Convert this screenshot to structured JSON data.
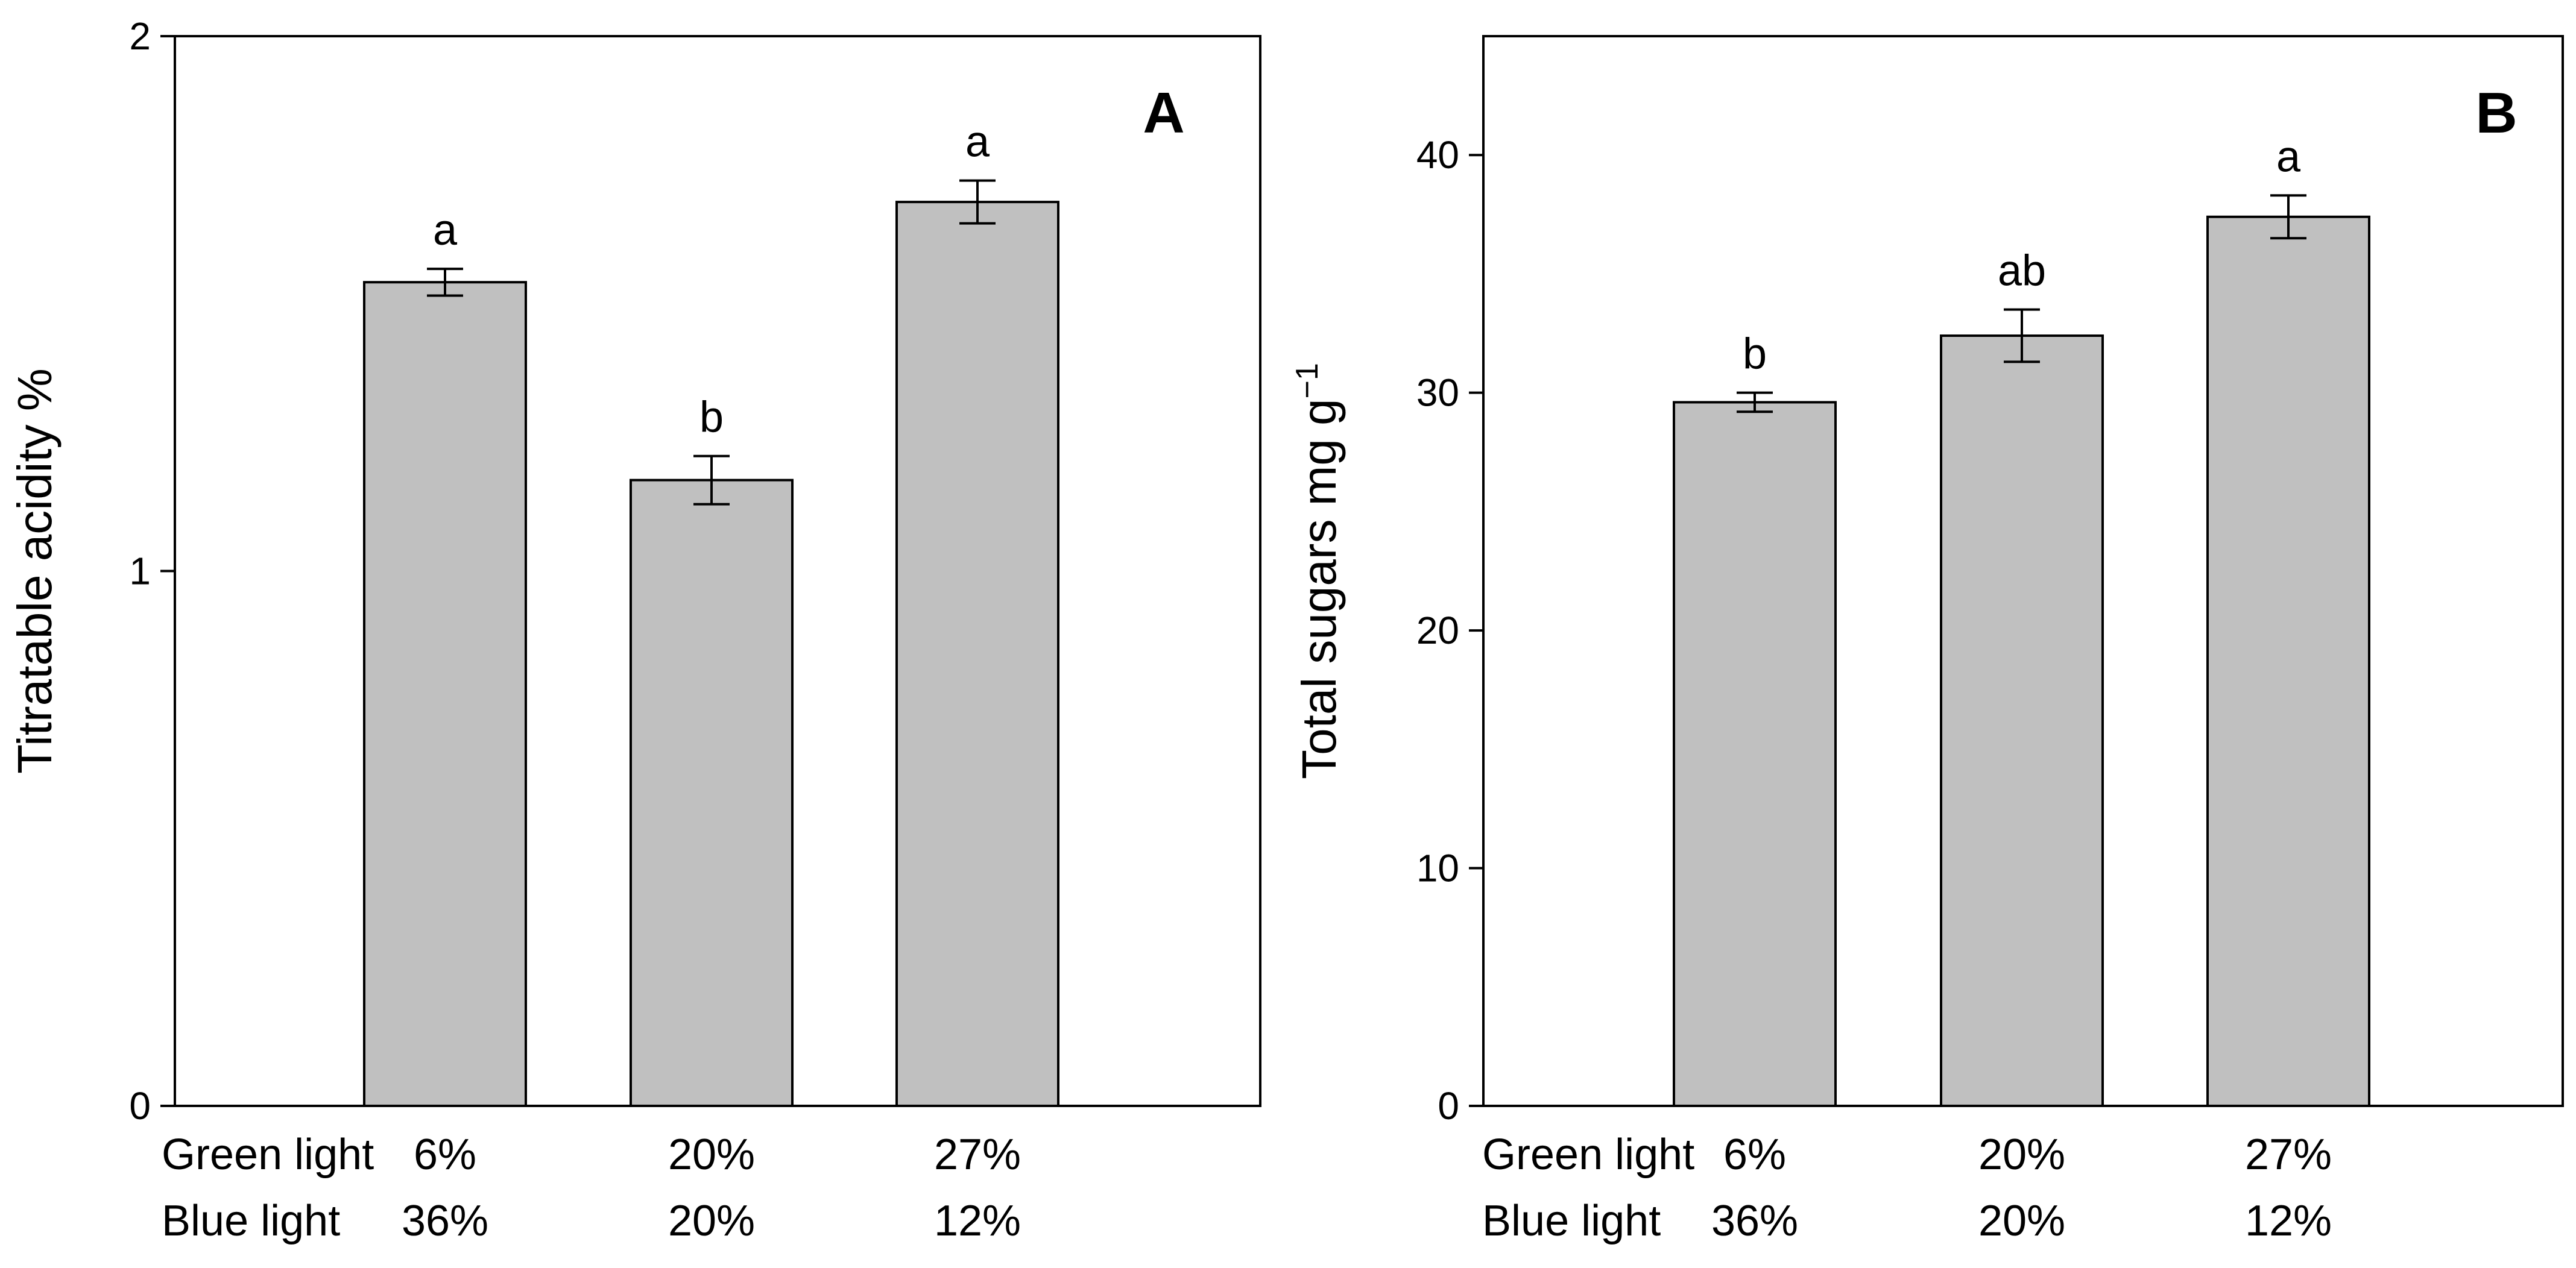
{
  "chart_data": [
    {
      "type": "bar",
      "panel_label": "A",
      "ylabel": "Titratable acidity %",
      "ylim": [
        0,
        2
      ],
      "yticks": [
        0,
        1,
        2
      ],
      "grid": false,
      "row_labels": [
        "Green light",
        "Blue light"
      ],
      "categories": [
        {
          "green": "6%",
          "blue": "36%"
        },
        {
          "green": "20%",
          "blue": "20%"
        },
        {
          "green": "27%",
          "blue": "12%"
        }
      ],
      "values": [
        1.54,
        1.17,
        1.69
      ],
      "errors": [
        0.025,
        0.045,
        0.04
      ],
      "significance": [
        "a",
        "b",
        "a"
      ],
      "bar_color": "#c0c0c0"
    },
    {
      "type": "bar",
      "panel_label": "B",
      "ylabel": "Total sugars mg g",
      "ylabel_superscript": "−1",
      "ylim": [
        0,
        45
      ],
      "yticks": [
        0,
        10,
        20,
        30,
        40
      ],
      "grid": false,
      "row_labels": [
        "Green light",
        "Blue light"
      ],
      "categories": [
        {
          "green": "6%",
          "blue": "36%"
        },
        {
          "green": "20%",
          "blue": "20%"
        },
        {
          "green": "27%",
          "blue": "12%"
        }
      ],
      "values": [
        29.6,
        32.4,
        37.4
      ],
      "errors": [
        0.4,
        1.1,
        0.9
      ],
      "significance": [
        "b",
        "ab",
        "a"
      ],
      "bar_color": "#c0c0c0"
    }
  ]
}
